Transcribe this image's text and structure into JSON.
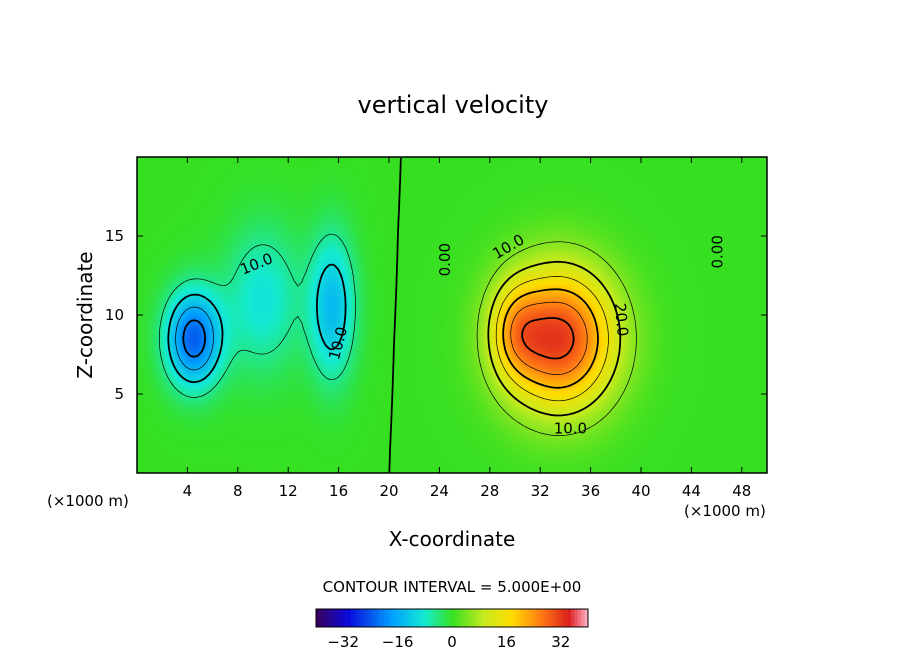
{
  "chart_data": {
    "type": "heatmap",
    "title": "vertical velocity",
    "xlabel": "X-coordinate",
    "ylabel": "Z-coordinate",
    "x_unit_left": "(×1000 m)",
    "x_unit_right": "(×1000 m)",
    "xlim": [
      0,
      50
    ],
    "ylim": [
      0,
      20
    ],
    "x_ticks": [
      4,
      8,
      12,
      16,
      20,
      24,
      28,
      32,
      36,
      40,
      44,
      48
    ],
    "y_ticks": [
      5,
      10,
      15
    ],
    "contour_interval_text": "CONTOUR INTERVAL = 5.000E+00",
    "contour_labels": [
      {
        "text": "10.0",
        "x": 9.5,
        "y": 13.2,
        "angle": -22
      },
      {
        "text": "10.0",
        "x": 16.0,
        "y": 8.2,
        "angle": -75
      },
      {
        "text": "0.00",
        "x": 24.5,
        "y": 13.5,
        "angle": -90
      },
      {
        "text": "10.0",
        "x": 29.5,
        "y": 14.3,
        "angle": -30
      },
      {
        "text": "20.0",
        "x": 38.4,
        "y": 9.7,
        "angle": 85
      },
      {
        "text": "10.0",
        "x": 34.4,
        "y": 2.8,
        "angle": 0
      },
      {
        "text": "0.00",
        "x": 46.1,
        "y": 14.0,
        "angle": -90
      }
    ],
    "colorbar": {
      "range": [
        -40,
        40
      ],
      "ticks": [
        -32,
        -16,
        0,
        16,
        32
      ],
      "tick_labels": [
        "−32",
        "−16",
        "0",
        "16",
        "32"
      ]
    },
    "field_features": [
      {
        "sign": "negative",
        "x": 4.5,
        "y": 8.5,
        "amplitude": -23,
        "sx": 2.2,
        "sz": 3.0
      },
      {
        "sign": "negative",
        "x": 15.5,
        "y": 10.5,
        "amplitude": -14,
        "sx": 1.8,
        "sz": 4.5
      },
      {
        "sign": "negative",
        "x": 10.0,
        "y": 11.0,
        "amplitude": -9,
        "sx": 3.0,
        "sz": 4.5
      },
      {
        "sign": "positive",
        "x": 33.5,
        "y": 8.5,
        "amplitude": 32,
        "sx": 4.5,
        "sz": 4.5
      },
      {
        "sign": "positive",
        "x": 30.0,
        "y": 9.0,
        "amplitude": 10,
        "sx": 2.0,
        "sz": 3.0
      }
    ],
    "colors": {
      "background_field": "#36e021",
      "frame": "#000000"
    }
  }
}
